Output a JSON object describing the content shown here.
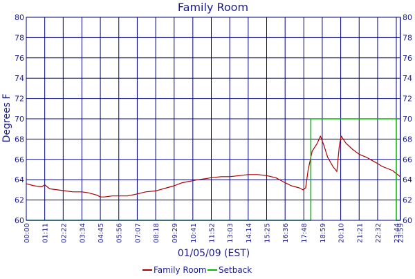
{
  "chart_data": {
    "type": "line",
    "title": "Family Room",
    "xlabel": "01/05/09 (EST)",
    "ylabel": "Degrees F",
    "ylim": [
      60,
      80
    ],
    "y_ticks": [
      60,
      62,
      64,
      66,
      68,
      70,
      72,
      74,
      76,
      78,
      80
    ],
    "x_tick_labels": [
      "00:00",
      "01:11",
      "02:22",
      "03:34",
      "04:45",
      "05:56",
      "07:07",
      "08:18",
      "09:29",
      "10:41",
      "11:52",
      "13:03",
      "14:14",
      "15:25",
      "16:36",
      "17:48",
      "18:59",
      "20:10",
      "21:21",
      "22:32",
      "23:44",
      "23:59"
    ],
    "x_unit": "time of day",
    "grid": true,
    "legend_position": "bottom",
    "series": [
      {
        "name": "Family Room",
        "color": "#aa0000",
        "points": [
          [
            "00:00",
            63.6
          ],
          [
            "00:30",
            63.4
          ],
          [
            "01:00",
            63.3
          ],
          [
            "01:11",
            63.5
          ],
          [
            "01:30",
            63.1
          ],
          [
            "02:00",
            63.0
          ],
          [
            "02:30",
            62.9
          ],
          [
            "03:00",
            62.8
          ],
          [
            "03:34",
            62.8
          ],
          [
            "04:00",
            62.7
          ],
          [
            "04:30",
            62.5
          ],
          [
            "04:45",
            62.3
          ],
          [
            "05:00",
            62.3
          ],
          [
            "05:30",
            62.4
          ],
          [
            "05:56",
            62.4
          ],
          [
            "06:30",
            62.4
          ],
          [
            "07:07",
            62.6
          ],
          [
            "07:40",
            62.8
          ],
          [
            "08:18",
            62.9
          ],
          [
            "09:00",
            63.2
          ],
          [
            "09:29",
            63.4
          ],
          [
            "10:00",
            63.7
          ],
          [
            "10:20",
            63.8
          ],
          [
            "10:41",
            63.9
          ],
          [
            "11:00",
            64.0
          ],
          [
            "11:30",
            64.1
          ],
          [
            "11:52",
            64.2
          ],
          [
            "12:30",
            64.3
          ],
          [
            "13:03",
            64.3
          ],
          [
            "13:40",
            64.4
          ],
          [
            "14:14",
            64.5
          ],
          [
            "14:50",
            64.5
          ],
          [
            "15:25",
            64.4
          ],
          [
            "16:00",
            64.2
          ],
          [
            "16:36",
            63.7
          ],
          [
            "17:00",
            63.4
          ],
          [
            "17:30",
            63.2
          ],
          [
            "17:45",
            63.0
          ],
          [
            "17:55",
            63.2
          ],
          [
            "18:05",
            65.0
          ],
          [
            "18:20",
            66.8
          ],
          [
            "18:40",
            67.6
          ],
          [
            "18:52",
            68.3
          ],
          [
            "19:05",
            67.4
          ],
          [
            "19:20",
            66.2
          ],
          [
            "19:40",
            65.3
          ],
          [
            "19:55",
            64.8
          ],
          [
            "20:05",
            67.4
          ],
          [
            "20:12",
            68.3
          ],
          [
            "20:30",
            67.6
          ],
          [
            "20:55",
            67.0
          ],
          [
            "21:21",
            66.5
          ],
          [
            "21:50",
            66.2
          ],
          [
            "22:10",
            65.9
          ],
          [
            "22:32",
            65.6
          ],
          [
            "22:50",
            65.3
          ],
          [
            "23:10",
            65.1
          ],
          [
            "23:30",
            64.9
          ],
          [
            "23:44",
            64.6
          ],
          [
            "23:59",
            64.3
          ]
        ]
      },
      {
        "name": "Setback",
        "color": "#00bb00",
        "points": [
          [
            "00:00",
            60
          ],
          [
            "18:15",
            60
          ],
          [
            "18:15",
            70
          ],
          [
            "23:44",
            70
          ],
          [
            "23:44",
            60
          ],
          [
            "23:59",
            60
          ]
        ]
      }
    ]
  }
}
